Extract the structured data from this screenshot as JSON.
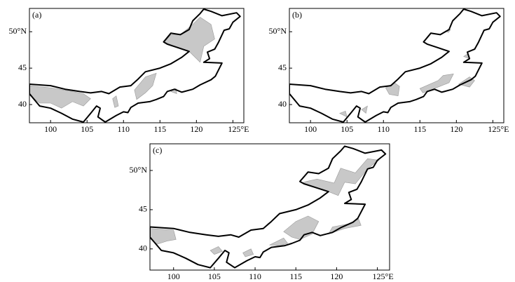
{
  "panels": [
    {
      "label": "(a)",
      "xlim": [
        97.1,
        126.5
      ],
      "ylim": [
        37.5,
        53.2
      ],
      "xticks": [
        100,
        105,
        110,
        115,
        120,
        {
          "value": 125,
          "label": "125°E"
        }
      ],
      "yticks": [
        40,
        45,
        {
          "value": 50,
          "label": "50°N"
        }
      ]
    },
    {
      "label": "(b)",
      "xlim": [
        97.1,
        126.5
      ],
      "ylim": [
        37.5,
        53.2
      ],
      "xticks": [
        100,
        105,
        110,
        115,
        120,
        {
          "value": 125,
          "label": "125°E"
        }
      ],
      "yticks": [
        40,
        45,
        {
          "value": 50,
          "label": "50°N"
        }
      ]
    },
    {
      "label": "(c)",
      "xlim": [
        97.1,
        126.5
      ],
      "ylim": [
        37.3,
        53.4
      ],
      "xticks": [
        100,
        105,
        110,
        115,
        120,
        {
          "value": 125,
          "label": "125°E"
        }
      ],
      "yticks": [
        40,
        45,
        {
          "value": 50,
          "label": "50°N"
        }
      ]
    }
  ]
}
